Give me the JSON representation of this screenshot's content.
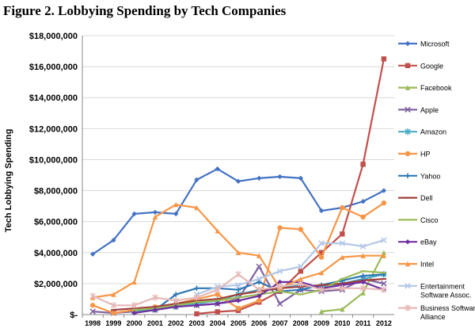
{
  "figure_title": "Figure 2. Lobbying Spending by Tech Companies",
  "chart_data": {
    "type": "line",
    "title": "Figure 2. Lobbying Spending by Tech Companies",
    "xlabel": "",
    "ylabel": "Tech Lobbying Spending",
    "ylim": [
      0,
      18000000
    ],
    "yticks": [
      0,
      2000000,
      4000000,
      6000000,
      8000000,
      10000000,
      12000000,
      14000000,
      16000000,
      18000000
    ],
    "ytick_labels": [
      "$-",
      "$2,000,000",
      "$4,000,000",
      "$6,000,000",
      "$8,000,000",
      "$10,000,000",
      "$12,000,000",
      "$14,000,000",
      "$16,000,000",
      "$18,000,000"
    ],
    "x": [
      1998,
      1999,
      2000,
      2001,
      2002,
      2003,
      2004,
      2005,
      2006,
      2007,
      2008,
      2009,
      2010,
      2011,
      2012
    ],
    "grid": "horizontal",
    "legend": "right",
    "series": [
      {
        "name": "Microsoft",
        "color": "#4472C4",
        "marker": "diamond",
        "values": [
          3900000,
          4800000,
          6500000,
          6600000,
          6500000,
          8700000,
          9400000,
          8600000,
          8800000,
          8900000,
          8800000,
          6700000,
          6900000,
          7300000,
          8000000
        ]
      },
      {
        "name": "Google",
        "color": "#C0504D",
        "marker": "square",
        "values": [
          null,
          null,
          null,
          null,
          null,
          50000,
          180000,
          260000,
          800000,
          1500000,
          2800000,
          4000000,
          5200000,
          9700000,
          16500000
        ]
      },
      {
        "name": "Facebook",
        "color": "#9BBB59",
        "marker": "triangle",
        "values": [
          null,
          null,
          null,
          null,
          null,
          null,
          null,
          null,
          null,
          null,
          null,
          200000,
          350000,
          1400000,
          4000000
        ]
      },
      {
        "name": "Apple",
        "color": "#8064A2",
        "marker": "x",
        "values": [
          200000,
          100000,
          200000,
          300000,
          500000,
          600000,
          700000,
          1000000,
          3100000,
          700000,
          1600000,
          1500000,
          1600000,
          2300000,
          2000000
        ]
      },
      {
        "name": "Amazon",
        "color": "#4BACC6",
        "marker": "star",
        "values": [
          null,
          null,
          200000,
          350000,
          500000,
          700000,
          900000,
          1300000,
          1600000,
          1700000,
          1900000,
          1800000,
          2000000,
          2300000,
          2600000
        ]
      },
      {
        "name": "HP",
        "color": "#F79646",
        "marker": "circle",
        "values": [
          600000,
          100000,
          300000,
          500000,
          700000,
          1000000,
          1300000,
          400000,
          900000,
          5600000,
          5500000,
          3700000,
          6900000,
          6300000,
          7200000
        ]
      },
      {
        "name": "Yahoo",
        "color": "#2C77B5",
        "marker": "plus",
        "values": [
          null,
          null,
          null,
          300000,
          1300000,
          1700000,
          1700000,
          1600000,
          2100000,
          1500000,
          1600000,
          1900000,
          2200000,
          2500000,
          2600000
        ]
      },
      {
        "name": "Dell",
        "color": "#A0403C",
        "marker": "dash",
        "values": [
          null,
          300000,
          400000,
          500000,
          700000,
          900000,
          1000000,
          1300000,
          1500000,
          1700000,
          1800000,
          1900000,
          2000000,
          2200000,
          2300000
        ]
      },
      {
        "name": "Cisco",
        "color": "#9BBB59",
        "marker": "dash",
        "values": [
          null,
          null,
          300000,
          400000,
          600000,
          800000,
          900000,
          1100000,
          1300000,
          1500000,
          1300000,
          1600000,
          2300000,
          2800000,
          2700000
        ]
      },
      {
        "name": "eBay",
        "color": "#7030A0",
        "marker": "diamond",
        "values": [
          null,
          null,
          100000,
          300000,
          500000,
          600000,
          700000,
          900000,
          1200000,
          2100000,
          2100000,
          1700000,
          1900000,
          2100000,
          1600000
        ]
      },
      {
        "name": "Intel",
        "color": "#F79646",
        "marker": "triangle",
        "values": [
          1100000,
          1300000,
          2100000,
          6300000,
          7100000,
          6900000,
          5400000,
          4000000,
          3800000,
          1700000,
          2300000,
          2700000,
          3700000,
          3800000,
          3800000
        ]
      },
      {
        "name": "Entertainment Software Assoc.",
        "color": "#B4C7E7",
        "marker": "x",
        "values": [
          null,
          null,
          null,
          null,
          null,
          1300000,
          1800000,
          1900000,
          2300000,
          2800000,
          3100000,
          4600000,
          4600000,
          4400000,
          4800000
        ]
      },
      {
        "name": "Business Software Alliance",
        "color": "#E6B9B8",
        "marker": "star",
        "values": [
          1200000,
          600000,
          600000,
          1100000,
          900000,
          1100000,
          1600000,
          2600000,
          1600000,
          1800000,
          2000000,
          1600000,
          1700000,
          1700000,
          1600000
        ]
      }
    ]
  }
}
